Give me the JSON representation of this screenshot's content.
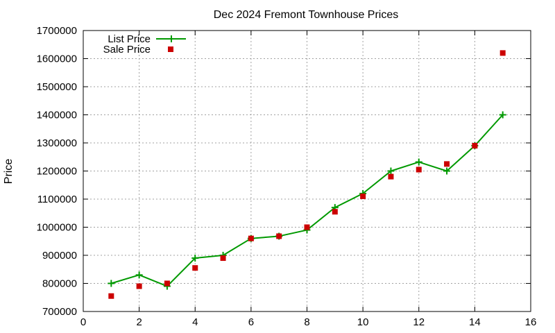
{
  "chart_data": {
    "type": "line",
    "title": "Dec 2024 Fremont Townhouse Prices",
    "xlabel": "",
    "ylabel": "Price",
    "xlim": [
      0,
      16
    ],
    "ylim": [
      700000,
      1700000
    ],
    "x_ticks": [
      0,
      2,
      4,
      6,
      8,
      10,
      12,
      14,
      16
    ],
    "y_ticks": [
      700000,
      800000,
      900000,
      1000000,
      1100000,
      1200000,
      1300000,
      1400000,
      1500000,
      1600000,
      1700000
    ],
    "grid": true,
    "legend_position": "top-left",
    "series": [
      {
        "name": "List Price",
        "style": "line-plus",
        "color": "#009900",
        "x": [
          1,
          2,
          3,
          4,
          5,
          6,
          7,
          8,
          9,
          10,
          11,
          12,
          13,
          14,
          15
        ],
        "y": [
          800000,
          830000,
          790000,
          890000,
          900000,
          960000,
          968000,
          990000,
          1070000,
          1120000,
          1200000,
          1232000,
          1200000,
          1290000,
          1400000
        ]
      },
      {
        "name": "Sale Price",
        "style": "square-points",
        "color": "#cc0000",
        "x": [
          1,
          2,
          3,
          4,
          5,
          6,
          7,
          8,
          9,
          10,
          11,
          12,
          13,
          14,
          15
        ],
        "y": [
          755000,
          790000,
          800000,
          855000,
          890000,
          960000,
          968000,
          1000000,
          1055000,
          1110000,
          1180000,
          1205000,
          1225000,
          1290000,
          1620000
        ]
      }
    ]
  }
}
